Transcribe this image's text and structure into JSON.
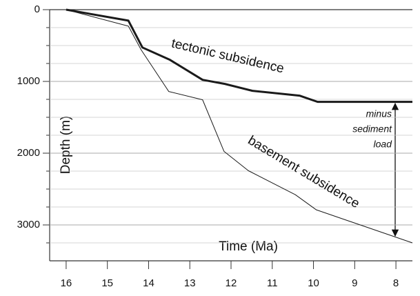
{
  "chart_data": {
    "type": "line",
    "xlabel": "Time (Ma)",
    "ylabel": "Depth (m)",
    "xlim": [
      16.4,
      7.6
    ],
    "xticks": [
      16,
      15,
      14,
      13,
      12,
      11,
      10,
      9,
      8
    ],
    "ylim": [
      0,
      3500
    ],
    "yticks": [
      0,
      1000,
      2000,
      3000
    ],
    "yminorticks": [
      250,
      500,
      750,
      1250,
      1500,
      1750,
      2250,
      2500,
      2750,
      3250
    ],
    "y_inverted": true,
    "grid": true,
    "series": [
      {
        "name": "tectonic subsidence",
        "color": "#1a1a1a",
        "width": 3,
        "x": [
          16,
          14.49,
          14.15,
          13.48,
          12.69,
          12.15,
          11.48,
          10.34,
          9.9,
          7.6
        ],
        "values": [
          0,
          153,
          527,
          700,
          978,
          1035,
          1131,
          1198,
          1285,
          1285
        ]
      },
      {
        "name": "basement subsidence",
        "color": "#1a1a1a",
        "width": 1,
        "x": [
          16,
          14.49,
          14.18,
          13.51,
          12.69,
          12.17,
          11.58,
          10.44,
          9.93,
          7.6
        ],
        "values": [
          0,
          230,
          560,
          1141,
          1256,
          1975,
          2244,
          2579,
          2790,
          3250
        ]
      }
    ],
    "annotation_lines": [
      "minus",
      "sediment",
      "load"
    ]
  }
}
